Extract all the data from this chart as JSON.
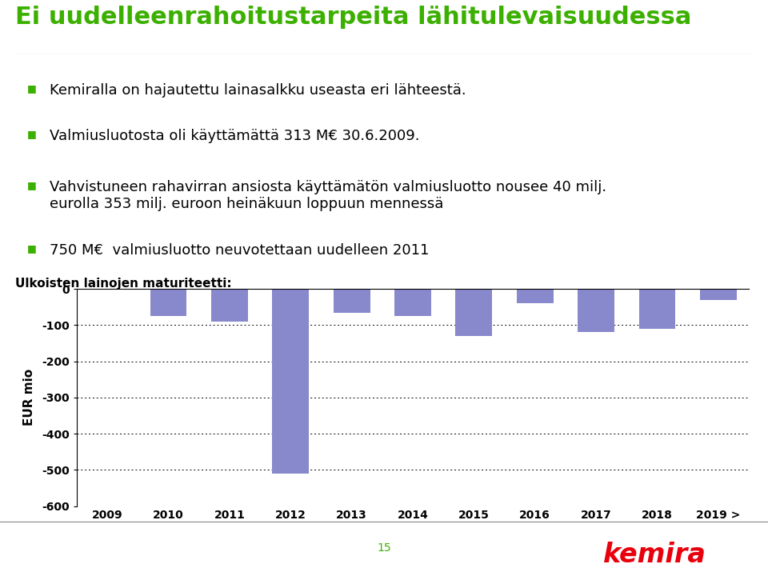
{
  "title": "Ei uudelleenrahoitustarpeita lähitulevaisuudessa",
  "bullet_points": [
    "Kemiralla on hajautettu lainasalkku useasta eri lähteestä.",
    "Valmiusluotosta oli käyttämättä 313 M€ 30.6.2009.",
    "Vahvistuneen rahavirran ansiosta käyttämätön valmiusluotto nousee 40 milj.\neurolla 353 milj. euroon heinäkuun loppuun mennessä",
    "750 M€  valmiusluotto neuvotettaan uudelleen 2011"
  ],
  "chart_title": "Ulkoisten lainojen maturiteetti:",
  "categories": [
    "2009",
    "2010",
    "2011",
    "2012",
    "2013",
    "2014",
    "2015",
    "2016",
    "2017",
    "2018",
    "2019 >"
  ],
  "values": [
    0,
    -75,
    -90,
    -510,
    -65,
    -75,
    -130,
    -40,
    -120,
    -110,
    -30
  ],
  "ylabel": "EUR mio",
  "ylim": [
    -600,
    0
  ],
  "yticks": [
    0,
    -100,
    -200,
    -300,
    -400,
    -500,
    -600
  ],
  "background_color": "#ffffff",
  "title_color": "#3CB000",
  "bullet_color": "#3CB000",
  "text_color": "#000000",
  "bar_color": "#8888CC",
  "page_number": "15",
  "kemira_color": "#E8000D",
  "title_fontsize": 22,
  "bullet_fontsize": 13,
  "chart_title_fontsize": 11
}
